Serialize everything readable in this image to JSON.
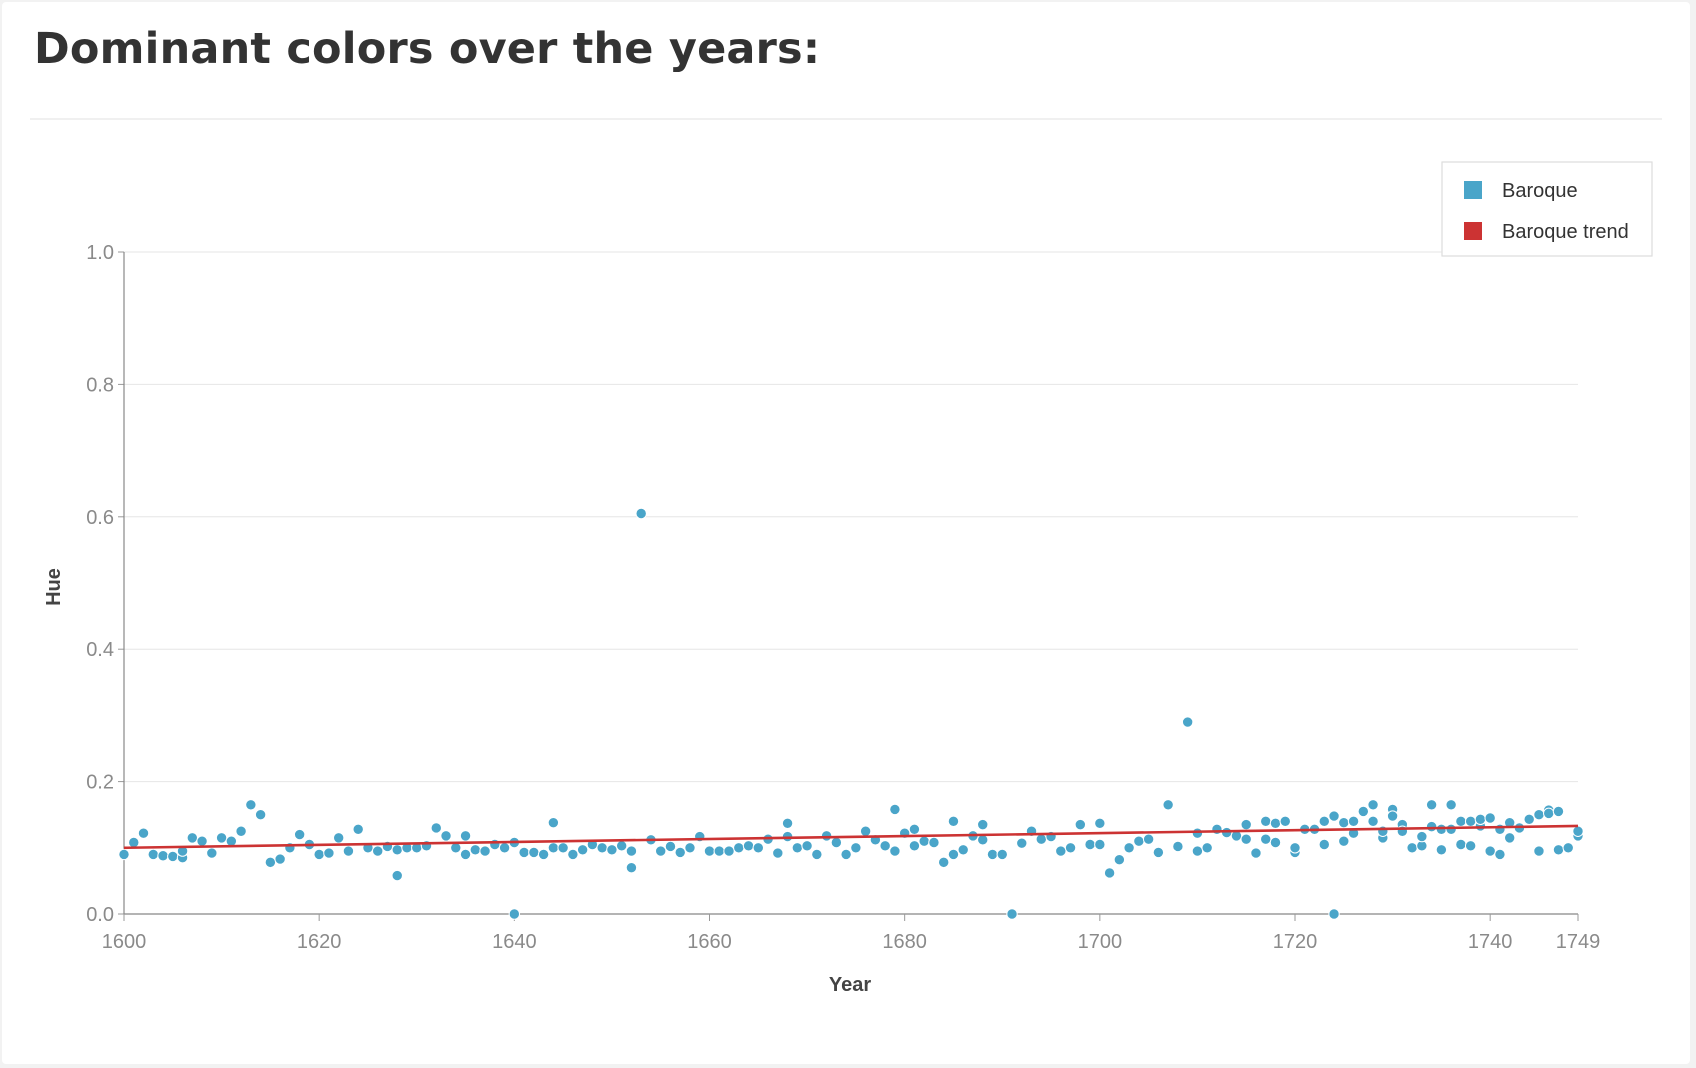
{
  "page": {
    "title": "Dominant colors over the years:"
  },
  "chart_data": {
    "type": "scatter",
    "xlabel": "Year",
    "ylabel": "Hue",
    "xlim": [
      1600,
      1749
    ],
    "ylim": [
      0,
      1
    ],
    "x_ticks": [
      1600,
      1620,
      1640,
      1660,
      1680,
      1700,
      1720,
      1740,
      1749
    ],
    "y_ticks": [
      "0.0",
      "0.2",
      "0.4",
      "0.6",
      "0.8",
      "1.0"
    ],
    "grid": true,
    "legend_position": "top-right",
    "series": [
      {
        "name": "Baroque",
        "color": "#4aa5c9",
        "points": [
          [
            1600,
            0.09
          ],
          [
            1601,
            0.108
          ],
          [
            1602,
            0.122
          ],
          [
            1603,
            0.09
          ],
          [
            1604,
            0.088
          ],
          [
            1605,
            0.087
          ],
          [
            1606,
            0.085
          ],
          [
            1606,
            0.095
          ],
          [
            1607,
            0.115
          ],
          [
            1608,
            0.11
          ],
          [
            1609,
            0.092
          ],
          [
            1610,
            0.115
          ],
          [
            1611,
            0.11
          ],
          [
            1612,
            0.125
          ],
          [
            1613,
            0.165
          ],
          [
            1614,
            0.15
          ],
          [
            1615,
            0.078
          ],
          [
            1616,
            0.083
          ],
          [
            1617,
            0.1
          ],
          [
            1618,
            0.12
          ],
          [
            1619,
            0.105
          ],
          [
            1620,
            0.09
          ],
          [
            1621,
            0.092
          ],
          [
            1622,
            0.115
          ],
          [
            1623,
            0.095
          ],
          [
            1624,
            0.128
          ],
          [
            1625,
            0.1
          ],
          [
            1626,
            0.095
          ],
          [
            1627,
            0.102
          ],
          [
            1628,
            0.058
          ],
          [
            1628,
            0.097
          ],
          [
            1629,
            0.1
          ],
          [
            1630,
            0.1
          ],
          [
            1631,
            0.103
          ],
          [
            1632,
            0.13
          ],
          [
            1633,
            0.118
          ],
          [
            1634,
            0.1
          ],
          [
            1635,
            0.09
          ],
          [
            1635,
            0.118
          ],
          [
            1636,
            0.097
          ],
          [
            1637,
            0.095
          ],
          [
            1638,
            0.105
          ],
          [
            1639,
            0.1
          ],
          [
            1640,
            0.108
          ],
          [
            1640,
            0.0
          ],
          [
            1641,
            0.093
          ],
          [
            1642,
            0.093
          ],
          [
            1643,
            0.09
          ],
          [
            1644,
            0.138
          ],
          [
            1644,
            0.1
          ],
          [
            1645,
            0.1
          ],
          [
            1646,
            0.09
          ],
          [
            1647,
            0.097
          ],
          [
            1648,
            0.105
          ],
          [
            1649,
            0.1
          ],
          [
            1650,
            0.097
          ],
          [
            1651,
            0.103
          ],
          [
            1652,
            0.095
          ],
          [
            1652,
            0.07
          ],
          [
            1653,
            0.605
          ],
          [
            1654,
            0.112
          ],
          [
            1655,
            0.095
          ],
          [
            1656,
            0.102
          ],
          [
            1657,
            0.093
          ],
          [
            1658,
            0.1
          ],
          [
            1659,
            0.117
          ],
          [
            1660,
            0.095
          ],
          [
            1661,
            0.095
          ],
          [
            1662,
            0.095
          ],
          [
            1663,
            0.1
          ],
          [
            1664,
            0.103
          ],
          [
            1665,
            0.1
          ],
          [
            1666,
            0.113
          ],
          [
            1667,
            0.092
          ],
          [
            1668,
            0.117
          ],
          [
            1668,
            0.137
          ],
          [
            1669,
            0.1
          ],
          [
            1670,
            0.103
          ],
          [
            1671,
            0.09
          ],
          [
            1672,
            0.118
          ],
          [
            1673,
            0.108
          ],
          [
            1674,
            0.09
          ],
          [
            1675,
            0.1
          ],
          [
            1676,
            0.125
          ],
          [
            1677,
            0.112
          ],
          [
            1678,
            0.103
          ],
          [
            1679,
            0.158
          ],
          [
            1679,
            0.095
          ],
          [
            1680,
            0.122
          ],
          [
            1681,
            0.128
          ],
          [
            1681,
            0.103
          ],
          [
            1682,
            0.11
          ],
          [
            1683,
            0.108
          ],
          [
            1684,
            0.078
          ],
          [
            1685,
            0.09
          ],
          [
            1685,
            0.14
          ],
          [
            1686,
            0.097
          ],
          [
            1687,
            0.118
          ],
          [
            1688,
            0.112
          ],
          [
            1688,
            0.135
          ],
          [
            1689,
            0.09
          ],
          [
            1690,
            0.09
          ],
          [
            1691,
            0.0
          ],
          [
            1692,
            0.107
          ],
          [
            1693,
            0.125
          ],
          [
            1694,
            0.113
          ],
          [
            1695,
            0.117
          ],
          [
            1696,
            0.095
          ],
          [
            1697,
            0.1
          ],
          [
            1698,
            0.135
          ],
          [
            1699,
            0.105
          ],
          [
            1700,
            0.105
          ],
          [
            1700,
            0.137
          ],
          [
            1701,
            0.062
          ],
          [
            1702,
            0.082
          ],
          [
            1703,
            0.1
          ],
          [
            1704,
            0.11
          ],
          [
            1705,
            0.113
          ],
          [
            1706,
            0.093
          ],
          [
            1707,
            0.165
          ],
          [
            1708,
            0.102
          ],
          [
            1709,
            0.29
          ],
          [
            1710,
            0.095
          ],
          [
            1710,
            0.122
          ],
          [
            1711,
            0.1
          ],
          [
            1712,
            0.128
          ],
          [
            1713,
            0.123
          ],
          [
            1714,
            0.118
          ],
          [
            1715,
            0.113
          ],
          [
            1715,
            0.135
          ],
          [
            1716,
            0.092
          ],
          [
            1717,
            0.14
          ],
          [
            1717,
            0.113
          ],
          [
            1718,
            0.108
          ],
          [
            1718,
            0.137
          ],
          [
            1719,
            0.14
          ],
          [
            1720,
            0.093
          ],
          [
            1720,
            0.1
          ],
          [
            1721,
            0.128
          ],
          [
            1722,
            0.128
          ],
          [
            1723,
            0.105
          ],
          [
            1723,
            0.14
          ],
          [
            1724,
            0.148
          ],
          [
            1724,
            0.0
          ],
          [
            1725,
            0.138
          ],
          [
            1725,
            0.11
          ],
          [
            1726,
            0.14
          ],
          [
            1726,
            0.122
          ],
          [
            1727,
            0.155
          ],
          [
            1728,
            0.165
          ],
          [
            1728,
            0.14
          ],
          [
            1729,
            0.115
          ],
          [
            1729,
            0.125
          ],
          [
            1730,
            0.158
          ],
          [
            1730,
            0.148
          ],
          [
            1731,
            0.135
          ],
          [
            1731,
            0.125
          ],
          [
            1732,
            0.1
          ],
          [
            1733,
            0.103
          ],
          [
            1733,
            0.117
          ],
          [
            1734,
            0.165
          ],
          [
            1734,
            0.132
          ],
          [
            1735,
            0.097
          ],
          [
            1735,
            0.128
          ],
          [
            1736,
            0.165
          ],
          [
            1736,
            0.128
          ],
          [
            1737,
            0.105
          ],
          [
            1737,
            0.14
          ],
          [
            1738,
            0.103
          ],
          [
            1738,
            0.14
          ],
          [
            1739,
            0.133
          ],
          [
            1739,
            0.143
          ],
          [
            1740,
            0.095
          ],
          [
            1740,
            0.145
          ],
          [
            1741,
            0.09
          ],
          [
            1741,
            0.128
          ],
          [
            1742,
            0.115
          ],
          [
            1742,
            0.138
          ],
          [
            1743,
            0.13
          ],
          [
            1744,
            0.143
          ],
          [
            1745,
            0.095
          ],
          [
            1745,
            0.15
          ],
          [
            1746,
            0.157
          ],
          [
            1746,
            0.152
          ],
          [
            1747,
            0.155
          ],
          [
            1747,
            0.097
          ],
          [
            1748,
            0.1
          ],
          [
            1749,
            0.118
          ],
          [
            1749,
            0.125
          ]
        ]
      },
      {
        "name": "Baroque trend",
        "color": "#cc3333",
        "type": "line",
        "points": [
          [
            1600,
            0.1
          ],
          [
            1749,
            0.133
          ]
        ]
      }
    ]
  }
}
